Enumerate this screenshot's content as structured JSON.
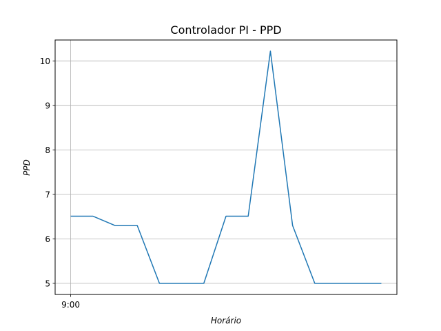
{
  "chart_data": {
    "type": "line",
    "title": "Controlador PI - PPD",
    "xlabel": "Horário",
    "ylabel": "PPD",
    "x_tick_labels": [
      {
        "x": 0,
        "label": "9:00"
      }
    ],
    "xlim": [
      -0.7,
      14.7
    ],
    "ylim": [
      4.75,
      10.47
    ],
    "yticks": [
      5,
      6,
      7,
      8,
      9,
      10
    ],
    "grid": true,
    "series": [
      {
        "color": "#1f77b4",
        "x": [
          0,
          1,
          2,
          3,
          4,
          5,
          6,
          7,
          8,
          9,
          10,
          11,
          12,
          13,
          14
        ],
        "y": [
          6.51,
          6.51,
          6.3,
          6.3,
          5.0,
          5.0,
          5.0,
          6.51,
          6.51,
          10.22,
          6.3,
          5.0,
          5.0,
          5.0,
          5.0
        ]
      }
    ]
  }
}
